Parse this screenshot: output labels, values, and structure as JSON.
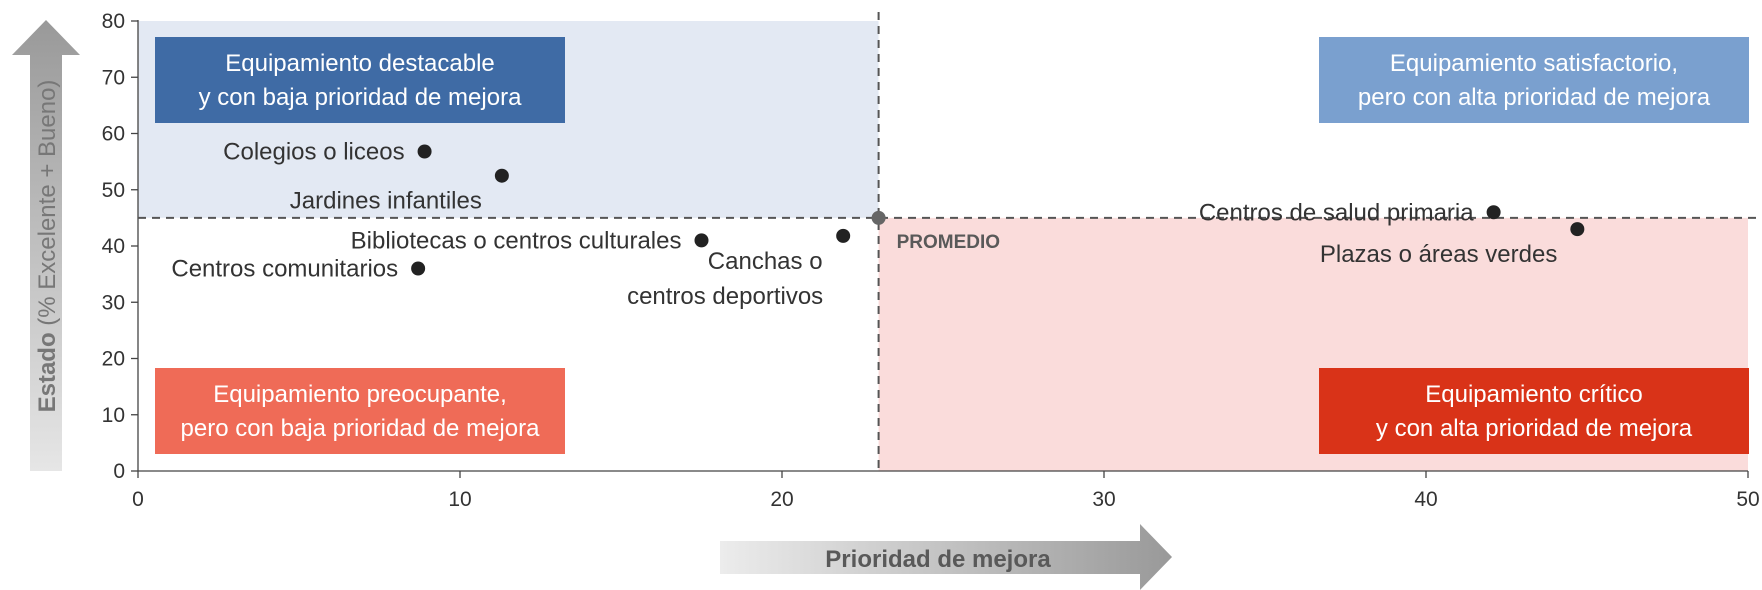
{
  "chart_data": {
    "type": "scatter",
    "title": "",
    "xlabel": "Prioridad de mejora",
    "ylabel_bold": "Estado",
    "ylabel_rest": " (% Excelente + Bueno)",
    "xlim": [
      0,
      50
    ],
    "ylim": [
      0,
      80
    ],
    "xticks": [
      0,
      10,
      20,
      30,
      40,
      50
    ],
    "yticks": [
      0,
      10,
      20,
      30,
      40,
      50,
      60,
      70,
      80
    ],
    "grid": false,
    "average": {
      "x": 23,
      "y": 45,
      "label": "PROMEDIO"
    },
    "points": [
      {
        "label": [
          "Colegios o liceos"
        ],
        "x": 8.9,
        "y": 56.8,
        "anchor": "left"
      },
      {
        "label": [
          "Jardines infantiles"
        ],
        "x": 11.3,
        "y": 52.5,
        "anchor": "below-left"
      },
      {
        "label": [
          "Bibliotecas o centros culturales"
        ],
        "x": 17.5,
        "y": 41.0,
        "anchor": "left"
      },
      {
        "label": [
          "Canchas o",
          "centros deportivos"
        ],
        "x": 21.9,
        "y": 41.8,
        "anchor": "below-left"
      },
      {
        "label": [
          "Centros comunitarios"
        ],
        "x": 8.7,
        "y": 36.0,
        "anchor": "left"
      },
      {
        "label": [
          "Centros de salud primaria"
        ],
        "x": 42.1,
        "y": 46.0,
        "anchor": "left"
      },
      {
        "label": [
          "Plazas o áreas verdes"
        ],
        "x": 44.7,
        "y": 43.0,
        "anchor": "below-left"
      }
    ],
    "quadrants": [
      {
        "lines": [
          "Equipamiento destacable",
          "y con baja prioridad de mejora"
        ],
        "position": "top-left",
        "color": "#3f6ba5",
        "shade": "#e3e9f3"
      },
      {
        "lines": [
          "Equipamiento satisfactorio,",
          "pero con alta prioridad de mejora"
        ],
        "position": "top-right",
        "color": "#7aa0cf",
        "shade": "#ffffff"
      },
      {
        "lines": [
          "Equipamiento preocupante,",
          "pero con baja prioridad de mejora"
        ],
        "position": "bottom-left",
        "color": "#ef6b57",
        "shade": "#ffffff"
      },
      {
        "lines": [
          "Equipamiento crítico",
          "y con alta prioridad de mejora"
        ],
        "position": "bottom-right",
        "color": "#d93318",
        "shade": "#fadcdb"
      }
    ]
  }
}
